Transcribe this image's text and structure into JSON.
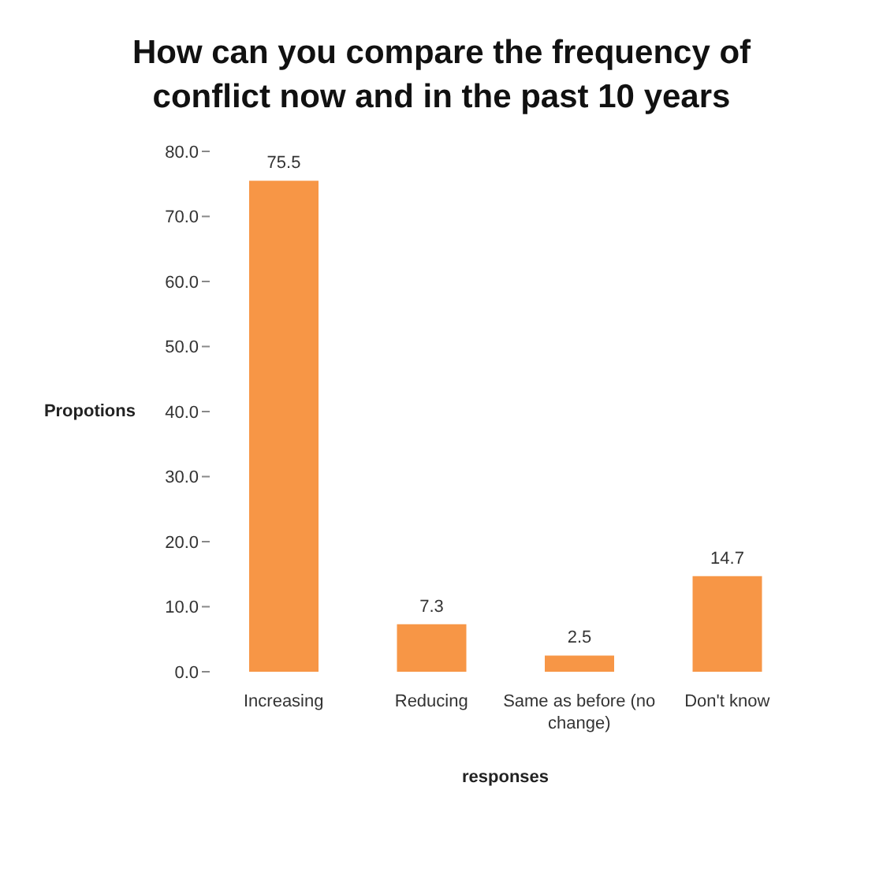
{
  "chart_data": {
    "type": "bar",
    "title": "How can you compare the frequency of conflict now and in the past 10 years",
    "xlabel": "responses",
    "ylabel": "Propotions",
    "categories": [
      "Increasing",
      "Reducing",
      "Same as before (no change)",
      "Don't know"
    ],
    "values": [
      75.5,
      7.3,
      2.5,
      14.7
    ],
    "color": "#f79646",
    "data_labels": true,
    "grid": false,
    "ylim": [
      0,
      80
    ],
    "yticks": [
      {
        "value": 0,
        "label": "0.0"
      },
      {
        "value": 10,
        "label": "10.0"
      },
      {
        "value": 20,
        "label": "20.0"
      },
      {
        "value": 30,
        "label": "30.0"
      },
      {
        "value": 40,
        "label": "40.0"
      },
      {
        "value": 50,
        "label": "50.0"
      },
      {
        "value": 60,
        "label": "60.0"
      },
      {
        "value": 70,
        "label": "70.0"
      },
      {
        "value": 80,
        "label": "80.0"
      }
    ]
  }
}
